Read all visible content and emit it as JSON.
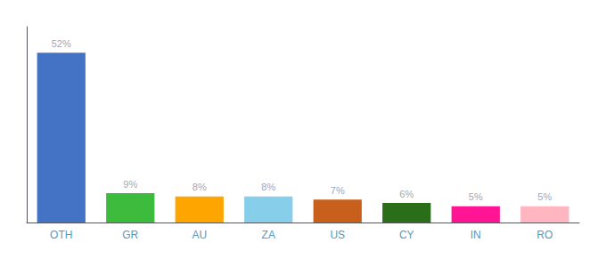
{
  "chart_data": {
    "type": "bar",
    "categories": [
      "OTH",
      "GR",
      "AU",
      "ZA",
      "US",
      "CY",
      "IN",
      "RO"
    ],
    "values": [
      52,
      9,
      8,
      8,
      7,
      6,
      5,
      5
    ],
    "value_labels": [
      "52%",
      "9%",
      "8%",
      "8%",
      "7%",
      "6%",
      "5%",
      "5%"
    ],
    "colors": [
      "#4472c4",
      "#3dbb3d",
      "#ffa500",
      "#87ceeb",
      "#c8601c",
      "#2a6e1a",
      "#ff1493",
      "#ffb6c1"
    ],
    "ylim": [
      0,
      60
    ],
    "grid": false,
    "data_labels": true,
    "tick_labels": "x"
  }
}
